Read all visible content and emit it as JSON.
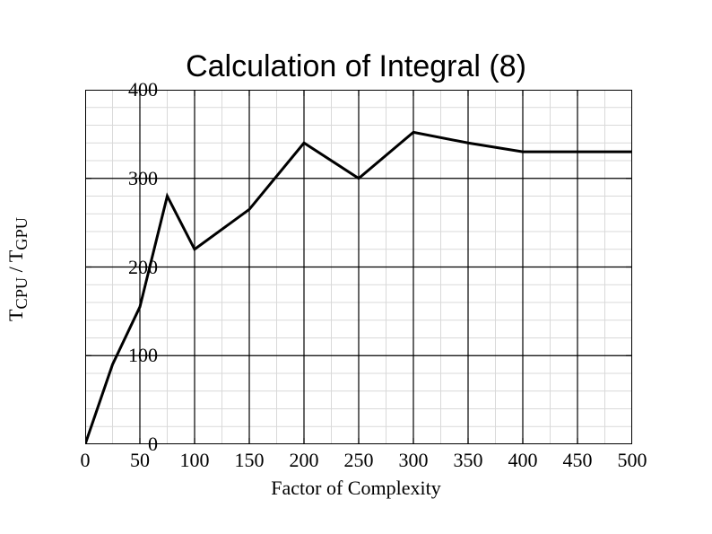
{
  "chart": {
    "type": "line",
    "title": "Calculation of Integral (8)",
    "title_fontsize": 34,
    "xlabel": "Factor of Complexity",
    "ylabel_html": "T<sub>CPU</sub> / T<sub>GPU</sub>",
    "label_fontsize": 22,
    "tick_fontsize": 22,
    "background_color": "#ffffff",
    "axis_color": "#000000",
    "axis_width": 2,
    "major_grid_color": "#000000",
    "major_grid_width": 1.2,
    "minor_grid_color": "#d9d9d9",
    "minor_grid_width": 1,
    "line_color": "#000000",
    "line_width": 3,
    "xlim": [
      0,
      500
    ],
    "ylim": [
      0,
      400
    ],
    "xticks": [
      0,
      50,
      100,
      150,
      200,
      250,
      300,
      350,
      400,
      450,
      500
    ],
    "yticks": [
      0,
      100,
      200,
      300,
      400
    ],
    "x_minor_step": 25,
    "y_minor_step": 20,
    "x": [
      0,
      25,
      50,
      75,
      100,
      150,
      200,
      250,
      300,
      350,
      400,
      450,
      500
    ],
    "y": [
      0,
      90,
      155,
      280,
      220,
      265,
      340,
      300,
      352,
      340,
      330,
      330,
      330
    ]
  }
}
